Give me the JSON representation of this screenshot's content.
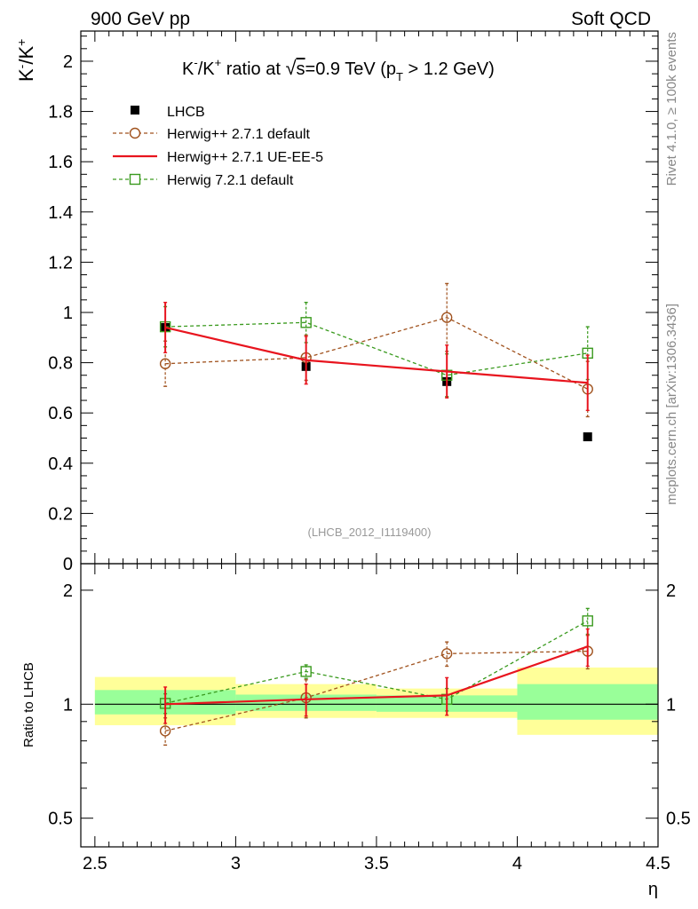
{
  "header": {
    "left": "900 GeV pp",
    "right": "Soft QCD"
  },
  "side_labels": {
    "top": "Rivet 4.1.0, ≥ 100k events",
    "bottom": "mcplots.cern.ch [arXiv:1306.3436]"
  },
  "colors": {
    "data": "#000000",
    "herwigpp_default": "#a0521e",
    "herwigpp_ueee5": "#e8141e",
    "herwig7": "#3a9a1e",
    "band_inner": "#99ff99",
    "band_outer": "#ffff99"
  },
  "chart_data": [
    {
      "type": "scatter",
      "title": "K⁻/K⁺ ratio at √s=0.9 TeV (pT > 1.2 GeV)",
      "title_parts": {
        "a": "K",
        "b": "-",
        "c": "/K",
        "d": "+",
        "e": " ratio at ",
        "f": "s",
        "g": "=0.9 TeV (p",
        "h": "T",
        "i": " > 1.2 GeV)"
      },
      "ylabel": "K⁻/K⁺",
      "ylabel_parts": {
        "a": "K",
        "b": "-",
        "c": "/K",
        "d": "+"
      },
      "ylim": [
        0,
        2.12
      ],
      "xlim": [
        2.45,
        4.5
      ],
      "yticks": [
        "0",
        "0.2",
        "0.4",
        "0.6",
        "0.8",
        "1",
        "1.2",
        "1.4",
        "1.6",
        "1.8",
        "2"
      ],
      "reference": "(LHCB_2012_I1119400)",
      "legend": [
        "LHCB",
        "Herwig++ 2.7.1 default",
        "Herwig++ 2.7.1 UE-EE-5",
        "Herwig 7.2.1 default"
      ],
      "x": [
        2.75,
        3.25,
        3.75,
        4.25
      ],
      "series": [
        {
          "name": "LHCB",
          "values": [
            0.94,
            0.785,
            0.725,
            0.505
          ]
        },
        {
          "name": "Herwig++ 2.7.1 default",
          "values": [
            0.796,
            0.82,
            0.98,
            0.695
          ],
          "err": [
            0.09,
            0.09,
            0.135,
            0.11
          ]
        },
        {
          "name": "Herwig++ 2.7.1 UE-EE-5",
          "values": [
            0.94,
            0.81,
            0.765,
            0.72
          ],
          "err": [
            0.1,
            0.095,
            0.105,
            0.11
          ]
        },
        {
          "name": "Herwig 7.2.1 default",
          "values": [
            0.943,
            0.96,
            0.75,
            0.838
          ],
          "err": [
            0.08,
            0.08,
            0.085,
            0.105
          ]
        }
      ]
    },
    {
      "type": "scatter",
      "ylabel": "Ratio to LHCB",
      "xlabel": "η",
      "ylim": [
        0.42,
        2.35
      ],
      "xlim": [
        2.45,
        4.5
      ],
      "yticks": [
        "0.5",
        "1",
        "2"
      ],
      "xticks": [
        "2.5",
        "3",
        "3.5",
        "4",
        "4.5"
      ],
      "bins": [
        {
          "lo": 2.5,
          "hi": 3.0,
          "inner": [
            0.94,
            1.09
          ],
          "outer": [
            0.88,
            1.18
          ]
        },
        {
          "lo": 3.0,
          "hi": 3.5,
          "inner": [
            0.96,
            1.06
          ],
          "outer": [
            0.92,
            1.13
          ]
        },
        {
          "lo": 3.5,
          "hi": 4.0,
          "inner": [
            0.955,
            1.055
          ],
          "outer": [
            0.92,
            1.1
          ]
        },
        {
          "lo": 4.0,
          "hi": 4.5,
          "inner": [
            0.91,
            1.13
          ],
          "outer": [
            0.83,
            1.25
          ]
        }
      ],
      "series": [
        {
          "name": "Herwig++ 2.7.1 default",
          "values": [
            0.85,
            1.04,
            1.36,
            1.38
          ],
          "err": [
            0.07,
            0.12,
            0.1,
            0.14
          ]
        },
        {
          "name": "Herwig++ 2.7.1 UE-EE-5",
          "values": [
            1.0,
            1.03,
            1.055,
            1.42
          ],
          "err": [
            0.11,
            0.1,
            0.12,
            0.16
          ]
        },
        {
          "name": "Herwig 7.2.1 default",
          "values": [
            1.005,
            1.22,
            1.03,
            1.66
          ],
          "err": [
            0.06,
            0.05,
            0.07,
            0.13
          ]
        }
      ]
    }
  ]
}
